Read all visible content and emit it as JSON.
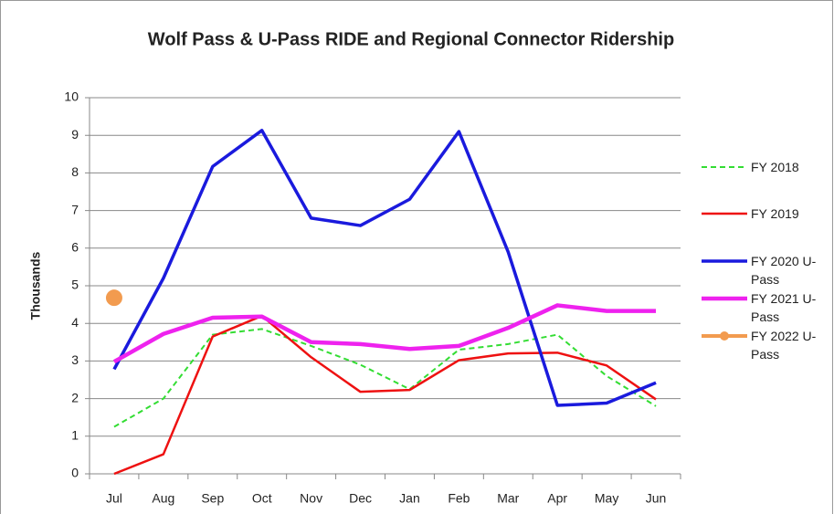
{
  "chart_data": {
    "type": "line",
    "title": "Wolf Pass & U-Pass RIDE and Regional Connector Ridership",
    "y_label": "Thousands",
    "categories": [
      "Jul",
      "Aug",
      "Sep",
      "Oct",
      "Nov",
      "Dec",
      "Jan",
      "Feb",
      "Mar",
      "Apr",
      "May",
      "Jun"
    ],
    "series": [
      {
        "name": "FY 2018",
        "color": "#33dd33",
        "dashed": true,
        "values": [
          1.25,
          2.0,
          3.7,
          3.85,
          3.4,
          2.9,
          2.25,
          3.3,
          3.45,
          3.7,
          2.6,
          1.8
        ]
      },
      {
        "name": "FY 2019",
        "color": "#ee1111",
        "values": [
          0,
          0.52,
          3.65,
          4.2,
          3.1,
          2.18,
          2.23,
          3.02,
          3.2,
          3.22,
          2.88,
          1.98
        ]
      },
      {
        "name": "FY 2020 U-Pass",
        "color": "#1a1add",
        "values": [
          2.78,
          5.2,
          8.17,
          9.13,
          6.8,
          6.6,
          7.3,
          9.1,
          5.9,
          1.82,
          1.88,
          2.42
        ]
      },
      {
        "name": "FY 2021 U-Pass",
        "color": "#ee22ee",
        "values": [
          2.98,
          3.72,
          4.15,
          4.18,
          3.5,
          3.45,
          3.32,
          3.4,
          3.88,
          4.48,
          4.33,
          4.33
        ]
      },
      {
        "name": "FY 2022 U-Pass",
        "color": "#f29b4f",
        "marker": true,
        "values": [
          4.68,
          null,
          null,
          null,
          null,
          null,
          null,
          null,
          null,
          null,
          null,
          null
        ]
      }
    ],
    "ylim": [
      0,
      10
    ],
    "yticks": [
      0,
      1,
      2,
      3,
      4,
      5,
      6,
      7,
      8,
      9,
      10
    ],
    "grid": true,
    "legend": "right"
  }
}
